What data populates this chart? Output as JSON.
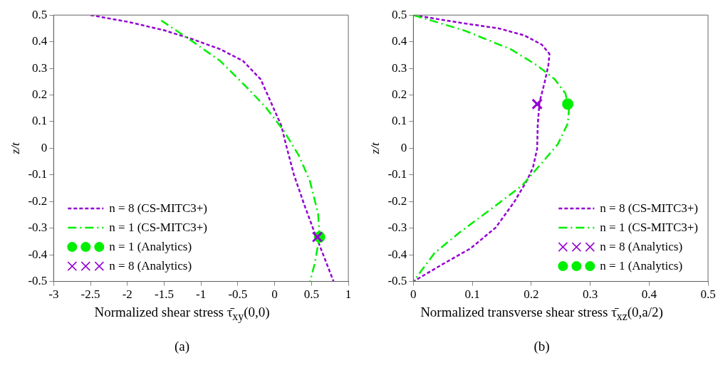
{
  "chart_data": [
    {
      "type": "line",
      "title": "(a)",
      "xlabel": "Normalized shear stress τ̄$_{xy}$(0,0)",
      "ylabel": "z/t",
      "xlim": [
        -3,
        1
      ],
      "xticks": [
        -3,
        -2.5,
        -2,
        -1.5,
        -1,
        -0.5,
        0,
        0.5,
        1
      ],
      "ylim": [
        -0.5,
        0.5
      ],
      "yticks": [
        -0.5,
        -0.4,
        -0.3,
        -0.2,
        -0.1,
        0,
        0.1,
        0.2,
        0.3,
        0.4,
        0.5
      ],
      "grid": false,
      "legend": "bottom left",
      "series": [
        {
          "name": "n = 8 (CS-MITC3+)",
          "color": "#9400d3",
          "line_style": "dotted",
          "x": [
            -2.5,
            -1.98,
            -1.5,
            -1.12,
            -0.74,
            -0.43,
            -0.19,
            -0.035,
            0.09,
            0.16,
            0.26,
            0.4,
            0.54,
            0.66,
            0.8
          ],
          "values": [
            0.5,
            0.474,
            0.443,
            0.41,
            0.372,
            0.328,
            0.259,
            0.163,
            0.085,
            0.007,
            -0.098,
            -0.21,
            -0.315,
            -0.4,
            -0.5
          ]
        },
        {
          "name": "n = 1 (CS-MITC3+)",
          "color": "#00ee00",
          "line_style": "dashed",
          "x": [
            -1.54,
            -1.12,
            -0.74,
            -0.39,
            -0.12,
            0.12,
            0.33,
            0.48,
            0.59,
            0.61,
            0.54,
            0.48
          ],
          "values": [
            0.48,
            0.402,
            0.328,
            0.232,
            0.154,
            0.067,
            -0.028,
            -0.124,
            -0.246,
            -0.332,
            -0.437,
            -0.5
          ]
        },
        {
          "name": "n = 1 (Analytics)",
          "type": "scatter",
          "color": "#00ee00",
          "marker": "circle",
          "x": [
            0.61
          ],
          "values": [
            -0.333
          ]
        },
        {
          "name": "n = 8 (Analytics)",
          "type": "scatter",
          "color": "#9400d3",
          "marker": "cross",
          "x": [
            0.58
          ],
          "values": [
            -0.333
          ]
        }
      ]
    },
    {
      "type": "line",
      "title": "(b)",
      "xlabel": "Normalized transverse shear stress τ̄$_{xz}$(0,a/2)",
      "ylabel": "z/t",
      "xlim": [
        0,
        0.5
      ],
      "xticks": [
        0,
        0.1,
        0.2,
        0.3,
        0.4,
        0.5
      ],
      "ylim": [
        -0.5,
        0.5
      ],
      "yticks": [
        -0.5,
        -0.4,
        -0.3,
        -0.2,
        -0.1,
        0,
        0.1,
        0.2,
        0.3,
        0.4,
        0.5
      ],
      "grid": false,
      "legend": "bottom right",
      "series": [
        {
          "name": "n = 8 (CS-MITC3+)",
          "color": "#9400d3",
          "line_style": "dotted",
          "x": [
            0,
            0.08,
            0.145,
            0.188,
            0.218,
            0.231,
            0.229,
            0.223,
            0.214,
            0.211,
            0.21,
            0.203,
            0.192,
            0.171,
            0.14,
            0.097,
            0.049,
            0
          ],
          "values": [
            0.5,
            0.471,
            0.45,
            0.424,
            0.389,
            0.354,
            0.311,
            0.25,
            0.172,
            0.085,
            -0.002,
            -0.072,
            -0.124,
            -0.202,
            -0.297,
            -0.376,
            -0.436,
            -0.5
          ]
        },
        {
          "name": "n = 1 (CS-MITC3+)",
          "color": "#00ee00",
          "line_style": "dashed",
          "x": [
            0,
            0.088,
            0.166,
            0.21,
            0.24,
            0.258,
            0.264,
            0.262,
            0.245,
            0.218,
            0.184,
            0.132,
            0.079,
            0.036,
            0
          ],
          "values": [
            0.5,
            0.441,
            0.371,
            0.311,
            0.259,
            0.206,
            0.146,
            0.093,
            0.015,
            -0.055,
            -0.141,
            -0.228,
            -0.315,
            -0.393,
            -0.5
          ]
        },
        {
          "name": "n = 8 (Analytics)",
          "type": "scatter",
          "color": "#9400d3",
          "marker": "cross",
          "x": [
            0.21
          ],
          "values": [
            0.166
          ]
        },
        {
          "name": "n = 1 (Analytics)",
          "type": "scatter",
          "color": "#00ee00",
          "marker": "circle",
          "x": [
            0.262
          ],
          "values": [
            0.166
          ]
        }
      ]
    }
  ]
}
